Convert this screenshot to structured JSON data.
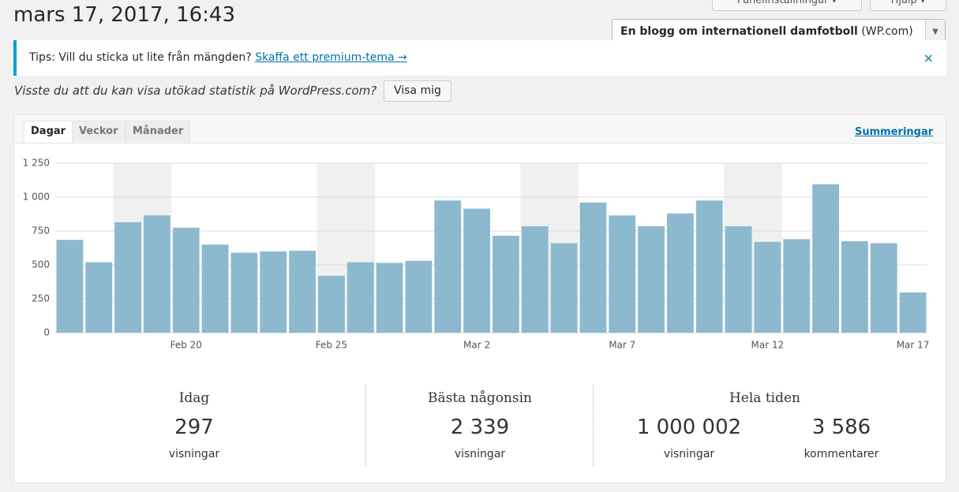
{
  "header": {
    "title": "mars 17, 2017, 16:43",
    "buttons": [
      "Panelinställningar ▾",
      "Hjälp ▾"
    ],
    "site_name": "En blogg om internationell damfotboll",
    "site_suffix": "(WP.com)"
  },
  "notice": {
    "text": "Tips: Vill du sticka ut lite från mängden?",
    "link": "Skaffa ett premium-tema →",
    "close": "×"
  },
  "promo": {
    "text": "Visste du att du kan visa utökad statistik på WordPress.com?",
    "button": "Visa mig"
  },
  "tabs": [
    "Dagar",
    "Veckor",
    "Månader"
  ],
  "summary_link": "Summeringar",
  "chart_data": {
    "type": "bar",
    "categories": [
      null,
      null,
      null,
      null,
      "Feb 20",
      null,
      null,
      null,
      null,
      "Feb 25",
      null,
      null,
      null,
      null,
      "Mar 2",
      null,
      null,
      null,
      null,
      "Mar 7",
      null,
      null,
      null,
      null,
      "Mar 12",
      null,
      null,
      null,
      null,
      "Mar 17"
    ],
    "values": [
      685,
      520,
      815,
      865,
      775,
      650,
      590,
      600,
      605,
      420,
      520,
      515,
      530,
      975,
      915,
      715,
      785,
      660,
      960,
      865,
      785,
      880,
      975,
      785,
      670,
      690,
      1095,
      675,
      660,
      297
    ],
    "color": "#8db9cf",
    "ylim": [
      0,
      1250
    ],
    "yticks": [
      0,
      250,
      500,
      750,
      {
        "value": 1000,
        "label": "1 000"
      },
      {
        "value": 1250,
        "label": "1 250"
      }
    ],
    "grid": true
  },
  "stats": {
    "today": {
      "title": "Idag",
      "value": "297",
      "unit": "visningar"
    },
    "best": {
      "title": "Bästa någonsin",
      "value": "2 339",
      "unit": "visningar"
    },
    "total": {
      "title": "Hela tiden",
      "items": [
        {
          "value": "1 000 002",
          "unit": "visningar"
        },
        {
          "value": "3 586",
          "unit": "kommentarer"
        }
      ]
    }
  }
}
